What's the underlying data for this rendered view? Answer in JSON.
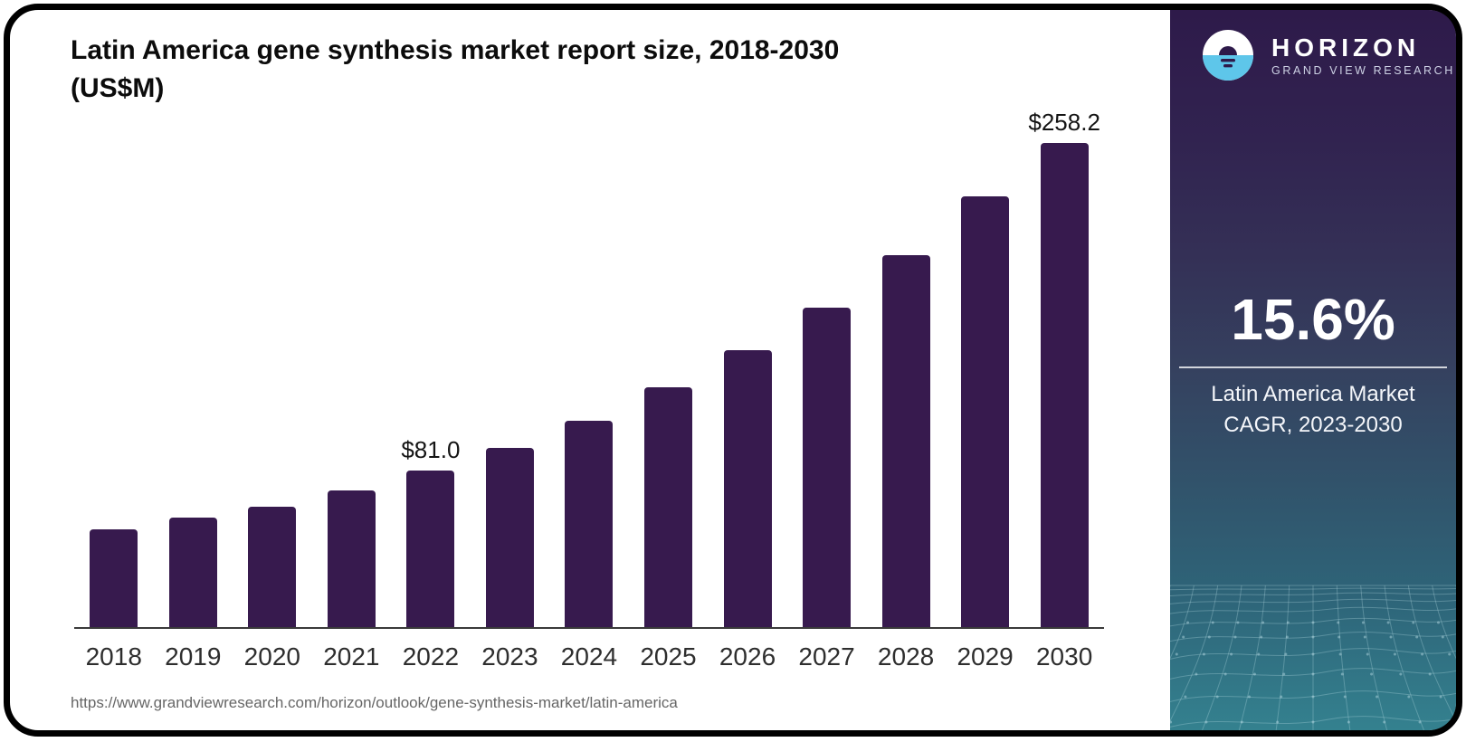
{
  "chart": {
    "title": "Latin America gene synthesis market report size, 2018-2030",
    "unit_label": "(US$M)"
  },
  "chart_data": {
    "type": "bar",
    "title": "Latin America gene synthesis market report size, 2018-2030 (US$M)",
    "unit": "US$M",
    "categories": [
      "2018",
      "2019",
      "2020",
      "2021",
      "2022",
      "2023",
      "2024",
      "2025",
      "2026",
      "2027",
      "2028",
      "2029",
      "2030"
    ],
    "values": [
      50.5,
      56.9,
      62.3,
      70.8,
      81.0,
      92.8,
      107.0,
      124.0,
      143.5,
      165.5,
      192.5,
      223.0,
      258.2
    ],
    "data_labels": {
      "2022": "$81.0",
      "2030": "$258.2"
    },
    "bar_color": "#371a4e",
    "xlabel": "",
    "ylabel": "",
    "ylim": [
      0,
      270
    ],
    "grid": false,
    "legend": false
  },
  "footer": {
    "source_url": "https://www.grandviewresearch.com/horizon/outlook/gene-synthesis-market/latin-america"
  },
  "sidebar": {
    "logo_icon": "sun-horizon-icon",
    "brand_name": "HORIZON",
    "brand_tagline": "GRAND VIEW RESEARCH",
    "stat_value": "15.6%",
    "stat_caption_line1": "Latin America Market",
    "stat_caption_line2": "CAGR, 2023-2030",
    "colors": {
      "gradient_top": "#2e1a4a",
      "gradient_bottom": "#34818f",
      "logo_blue": "#5ec6ea",
      "mesh_line": "#bee1e9"
    }
  }
}
